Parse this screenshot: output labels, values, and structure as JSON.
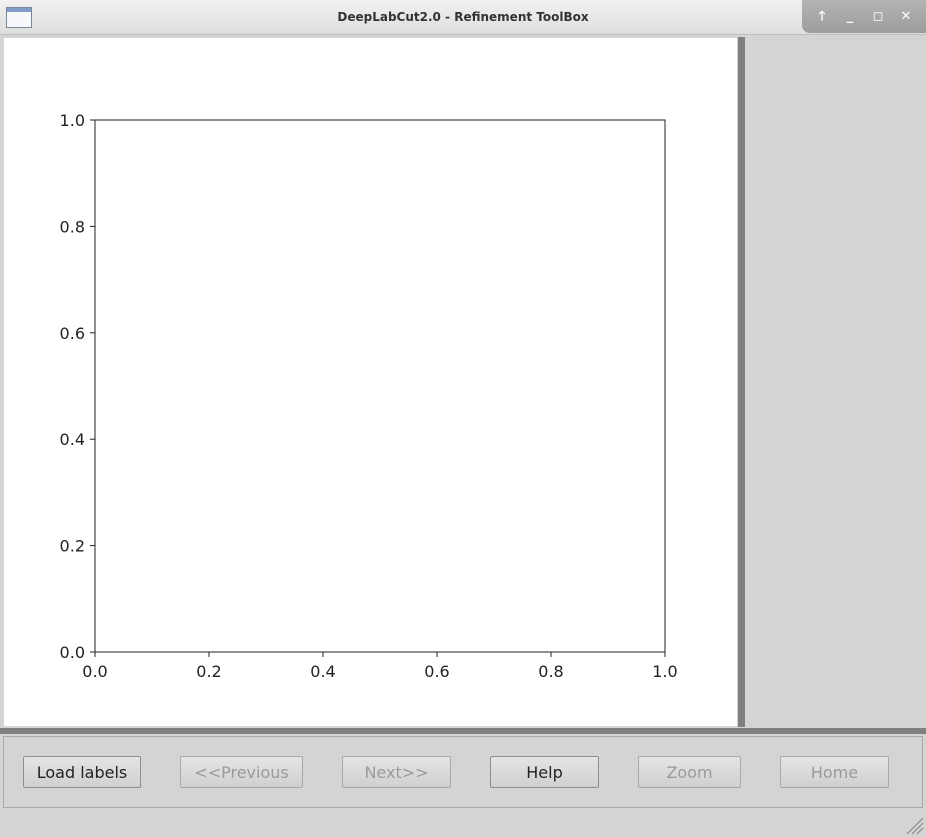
{
  "window": {
    "title": "DeepLabCut2.0 - Refinement ToolBox",
    "controls": [
      "up-arrow-icon",
      "minimize-icon",
      "maximize-icon",
      "close-icon"
    ]
  },
  "chart_data": {
    "type": "scatter",
    "title": "",
    "xlabel": "",
    "ylabel": "",
    "xlim": [
      0.0,
      1.0
    ],
    "ylim": [
      0.0,
      1.0
    ],
    "xticks": [
      "0.0",
      "0.2",
      "0.4",
      "0.6",
      "0.8",
      "1.0"
    ],
    "yticks": [
      "0.0",
      "0.2",
      "0.4",
      "0.6",
      "0.8",
      "1.0"
    ],
    "series": [],
    "grid": false
  },
  "buttons": [
    {
      "label": "Load labels",
      "enabled": true
    },
    {
      "label": "<<Previous",
      "enabled": false
    },
    {
      "label": "Next>>",
      "enabled": false
    },
    {
      "label": "Help",
      "enabled": true
    },
    {
      "label": "Zoom",
      "enabled": false
    },
    {
      "label": "Home",
      "enabled": false
    }
  ],
  "colors": {
    "titlebar": "#e6e6e6",
    "panel": "#d4d4d4",
    "splitter": "#808080",
    "plot_bg": "#ffffff",
    "disabled_text": "#9a9a9a"
  }
}
